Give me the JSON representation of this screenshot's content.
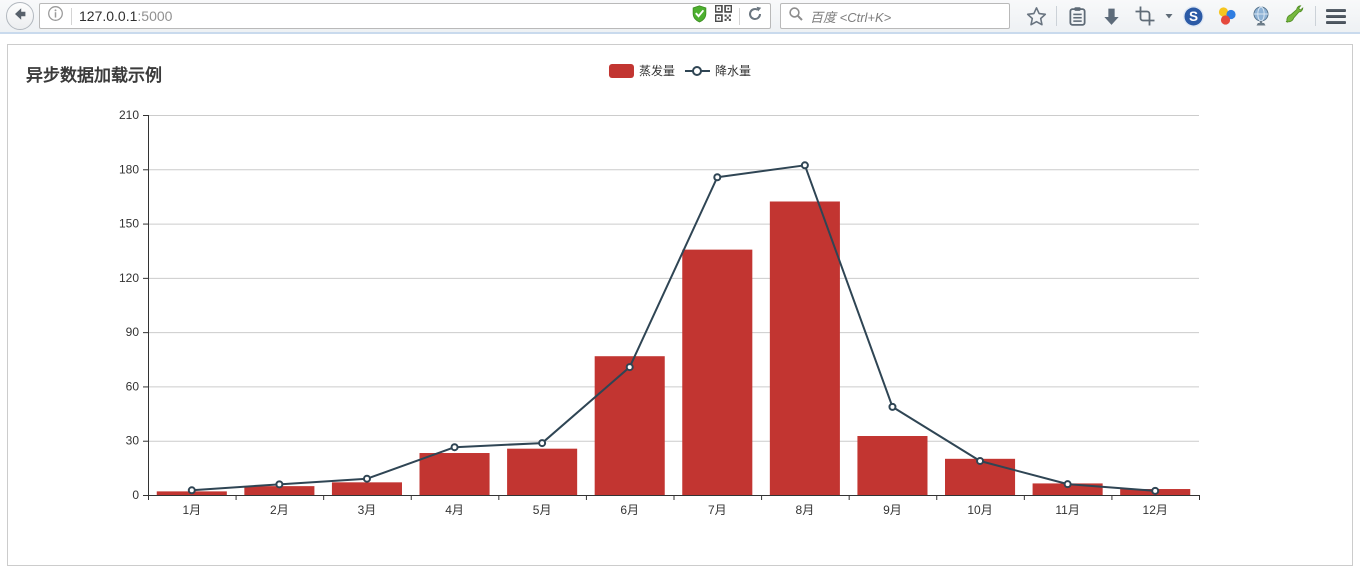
{
  "browser": {
    "url": {
      "host": "127.0.0.1",
      "port": ":5000"
    },
    "search": {
      "placeholder": "百度 <Ctrl+K>"
    },
    "icons": [
      "back-icon",
      "info-icon",
      "shield-icon",
      "qr-code-icon",
      "reload-icon",
      "search-icon",
      "bookmark-star-icon",
      "bookmarks-menu-icon",
      "downloads-icon",
      "screenshot-crop-icon",
      "dropdown-caret-icon",
      "sogou-s-icon",
      "colored-dots-icon",
      "globe-icon",
      "wrench-icon",
      "menu-icon"
    ]
  },
  "page": {
    "title": "异步数据加载示例"
  },
  "chart_data": {
    "type": "bar",
    "title": "异步数据加载示例",
    "categories": [
      "1月",
      "2月",
      "3月",
      "4月",
      "5月",
      "6月",
      "7月",
      "8月",
      "9月",
      "10月",
      "11月",
      "12月"
    ],
    "series": [
      {
        "name": "蒸发量",
        "type": "bar",
        "color": "#c23531",
        "values": [
          2.0,
          4.9,
          7.0,
          23.2,
          25.6,
          76.7,
          135.6,
          162.2,
          32.6,
          20.0,
          6.4,
          3.3
        ]
      },
      {
        "name": "降水量",
        "type": "line",
        "color": "#2f4554",
        "values": [
          2.6,
          5.9,
          9.0,
          26.4,
          28.7,
          70.7,
          175.6,
          182.2,
          48.7,
          18.8,
          6.0,
          2.3
        ]
      }
    ],
    "xlabel": "",
    "ylabel": "",
    "ylim": [
      0,
      210
    ],
    "ytick_interval": 30,
    "yticks": [
      0,
      30,
      60,
      90,
      120,
      150,
      180,
      210
    ],
    "legend": [
      "蒸发量",
      "降水量"
    ],
    "legend_position": "top-center",
    "grid": true,
    "colors": {
      "axis": "#333333",
      "gridline": "#cccccc",
      "label": "#333333"
    }
  }
}
